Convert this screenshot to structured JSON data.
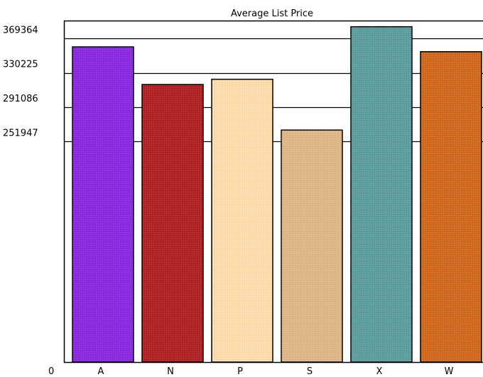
{
  "chart_data": {
    "type": "bar",
    "title": "Average List Price",
    "categories": [
      "A",
      "N",
      "P",
      "S",
      "X",
      "W"
    ],
    "values": [
      360000,
      317000,
      323000,
      265000,
      383000,
      354500
    ],
    "colors": [
      "#8a2be2",
      "#b22222",
      "#ffdead",
      "#deb887",
      "#5f9ea0",
      "#d2691e"
    ],
    "y_ticks": [
      0,
      251947,
      291086,
      330225,
      369364
    ],
    "ylim": [
      0,
      390000
    ],
    "grid": true,
    "legend": "none",
    "xlabel": "",
    "ylabel": ""
  }
}
